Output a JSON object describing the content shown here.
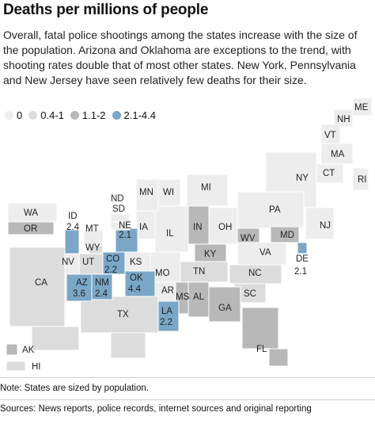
{
  "title": "Deaths per millions of people",
  "description": "Overall, fatal police shootings among the states increase with the size of the population. Arizona and Oklahoma are exceptions to the trend, with shooting rates double that of most other states. New York, Pennsylvania and New Jersey have seen relatively few deaths for their size.",
  "legend": [
    {
      "label": "0",
      "color": "#ededed"
    },
    {
      "label": "0.4-1",
      "color": "#dcdcdc"
    },
    {
      "label": "1.1-2",
      "color": "#b8b8b8"
    },
    {
      "label": "2.1-4.4",
      "color": "#7aa7c7"
    }
  ],
  "colors": {
    "c0": "#ededed",
    "c1": "#dcdcdc",
    "c2": "#b8b8b8",
    "c3": "#7aa7c7",
    "border": "#ffffff"
  },
  "states": {
    "ME": "ME",
    "NH": "NH",
    "VT": "VT",
    "MA": "MA",
    "CT": "CT",
    "RI": "RI",
    "NY": "NY",
    "PA": "PA",
    "NJ": "NJ",
    "MD": "MD",
    "DE": "DE",
    "DE_value": "2.1",
    "WV": "WV",
    "VA": "VA",
    "NC": "NC",
    "SC": "SC",
    "GA": "GA",
    "FL": "FL",
    "AL": "AL",
    "MS": "MS",
    "TN": "TN",
    "KY": "KY",
    "OH": "OH",
    "IN": "IN",
    "MI": "MI",
    "IL": "IL",
    "WI": "WI",
    "MN": "MN",
    "IA": "IA",
    "MO": "MO",
    "AR": "AR",
    "LA": "LA",
    "LA_value": "2.2",
    "TX": "TX",
    "OK": "OK",
    "OK_value": "4.4",
    "KS": "KS",
    "NE": "NE",
    "NE_value": "2.1",
    "SD": "SD",
    "ND": "ND",
    "MT": "MT",
    "WY": "WY",
    "CO": "CO",
    "CO_value": "2.2",
    "NM": "NM",
    "NM_value": "2.4",
    "AZ": "AZ",
    "AZ_value": "3.6",
    "UT": "UT",
    "NV": "NV",
    "ID": "ID",
    "ID_value": "2.4",
    "OR": "OR",
    "WA": "WA",
    "CA": "CA",
    "AK": "AK",
    "HI": "HI"
  },
  "note": "Note: States are sized by population.",
  "sources": "Sources: News reports, police records, internet sources and original reporting"
}
